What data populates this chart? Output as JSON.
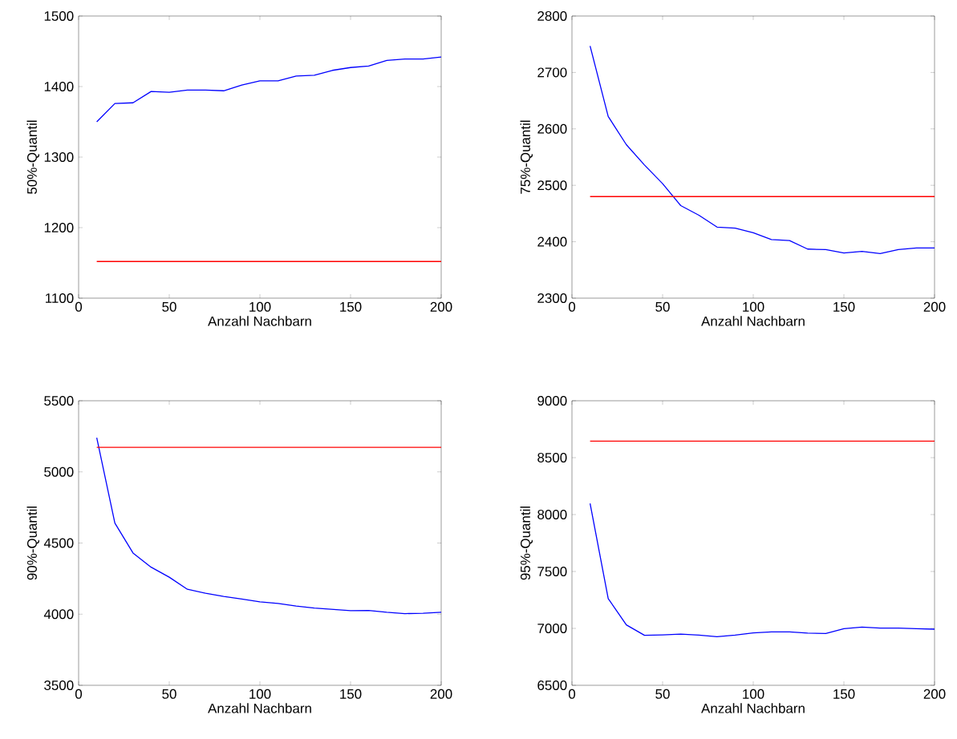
{
  "chart_data": [
    {
      "type": "line",
      "xlabel": "Anzahl Nachbarn",
      "ylabel": "50%-Quantil",
      "xlim": [
        0,
        200
      ],
      "xticks": [
        0,
        50,
        100,
        150,
        200
      ],
      "ylim": [
        1100,
        1500
      ],
      "yticks": [
        1100,
        1200,
        1300,
        1400,
        1500
      ],
      "series": [
        {
          "color": "#0000ff",
          "x": [
            10,
            20,
            30,
            40,
            50,
            60,
            70,
            80,
            90,
            100,
            110,
            120,
            130,
            140,
            150,
            160,
            170,
            180,
            190,
            200
          ],
          "values": [
            1350,
            1376,
            1377,
            1393,
            1392,
            1395,
            1395,
            1394,
            1402,
            1408,
            1408,
            1415,
            1416,
            1423,
            1427,
            1429,
            1437,
            1439,
            1439,
            1442
          ]
        },
        {
          "color": "#ff0000",
          "x": [
            10,
            200
          ],
          "values": [
            1152,
            1152
          ]
        }
      ]
    },
    {
      "type": "line",
      "xlabel": "Anzahl Nachbarn",
      "ylabel": "75%-Quantil",
      "xlim": [
        0,
        200
      ],
      "xticks": [
        0,
        50,
        100,
        150,
        200
      ],
      "ylim": [
        2300,
        2800
      ],
      "yticks": [
        2300,
        2400,
        2500,
        2600,
        2700,
        2800
      ],
      "series": [
        {
          "color": "#0000ff",
          "x": [
            10,
            20,
            30,
            40,
            50,
            60,
            70,
            80,
            90,
            100,
            110,
            120,
            130,
            140,
            150,
            160,
            170,
            180,
            190,
            200
          ],
          "values": [
            2747,
            2622,
            2572,
            2536,
            2503,
            2464,
            2447,
            2426,
            2424,
            2416,
            2404,
            2402,
            2387,
            2386,
            2380,
            2383,
            2379,
            2386,
            2389,
            2389
          ]
        },
        {
          "color": "#ff0000",
          "x": [
            10,
            200
          ],
          "values": [
            2480,
            2480
          ]
        }
      ]
    },
    {
      "type": "line",
      "xlabel": "Anzahl Nachbarn",
      "ylabel": "90%-Quantil",
      "xlim": [
        0,
        200
      ],
      "xticks": [
        0,
        50,
        100,
        150,
        200
      ],
      "ylim": [
        3500,
        5500
      ],
      "yticks": [
        3500,
        4000,
        4500,
        5000,
        5500
      ],
      "series": [
        {
          "color": "#0000ff",
          "x": [
            10,
            20,
            30,
            40,
            50,
            60,
            70,
            80,
            90,
            100,
            110,
            120,
            130,
            140,
            150,
            160,
            170,
            180,
            190,
            200
          ],
          "values": [
            5240,
            4640,
            4430,
            4330,
            4260,
            4175,
            4147,
            4125,
            4106,
            4087,
            4075,
            4057,
            4043,
            4034,
            4025,
            4026,
            4013,
            4004,
            4006,
            4013
          ]
        },
        {
          "color": "#ff0000",
          "x": [
            10,
            200
          ],
          "values": [
            5172,
            5172
          ]
        }
      ]
    },
    {
      "type": "line",
      "xlabel": "Anzahl Nachbarn",
      "ylabel": "95%-Quantil",
      "xlim": [
        0,
        200
      ],
      "xticks": [
        0,
        50,
        100,
        150,
        200
      ],
      "ylim": [
        6500,
        9000
      ],
      "yticks": [
        6500,
        7000,
        7500,
        8000,
        8500,
        9000
      ],
      "series": [
        {
          "color": "#0000ff",
          "x": [
            10,
            20,
            30,
            40,
            50,
            60,
            70,
            80,
            90,
            100,
            110,
            120,
            130,
            140,
            150,
            160,
            170,
            180,
            190,
            200
          ],
          "values": [
            8097,
            7262,
            7031,
            6939,
            6943,
            6950,
            6941,
            6927,
            6941,
            6960,
            6969,
            6969,
            6958,
            6955,
            6998,
            7012,
            7002,
            7002,
            6998,
            6993
          ]
        },
        {
          "color": "#ff0000",
          "x": [
            10,
            200
          ],
          "values": [
            8645,
            8645
          ]
        }
      ]
    }
  ]
}
